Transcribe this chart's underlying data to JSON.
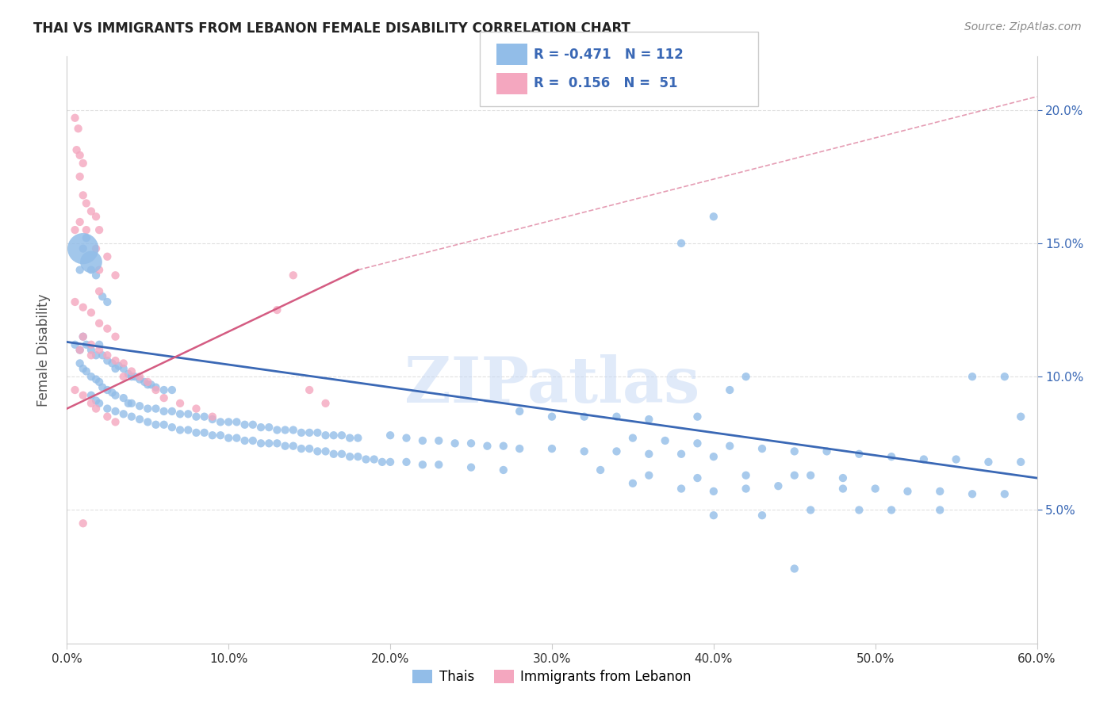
{
  "title": "THAI VS IMMIGRANTS FROM LEBANON FEMALE DISABILITY CORRELATION CHART",
  "source": "Source: ZipAtlas.com",
  "ylabel": "Female Disability",
  "watermark": "ZIPatlas",
  "xlim": [
    0.0,
    0.6
  ],
  "ylim": [
    0.0,
    0.22
  ],
  "xticks": [
    0.0,
    0.1,
    0.2,
    0.3,
    0.4,
    0.5,
    0.6
  ],
  "yticks": [
    0.05,
    0.1,
    0.15,
    0.2
  ],
  "thai_color": "#92bde8",
  "lebanon_color": "#f4a7bf",
  "thai_line_color": "#3a68b5",
  "lebanon_line_color": "#d45c82",
  "thai_line": [
    0.0,
    0.113,
    0.6,
    0.062
  ],
  "lebanon_line_solid": [
    0.0,
    0.088,
    0.18,
    0.14
  ],
  "lebanon_line_dashed": [
    0.18,
    0.14,
    0.6,
    0.205
  ],
  "background_color": "#ffffff",
  "grid_color": "#e0e0e0",
  "thai_scatter": [
    [
      0.01,
      0.148
    ],
    [
      0.012,
      0.152
    ],
    [
      0.008,
      0.14
    ],
    [
      0.015,
      0.14
    ],
    [
      0.018,
      0.138
    ],
    [
      0.022,
      0.13
    ],
    [
      0.025,
      0.128
    ],
    [
      0.005,
      0.112
    ],
    [
      0.008,
      0.11
    ],
    [
      0.01,
      0.115
    ],
    [
      0.012,
      0.112
    ],
    [
      0.015,
      0.11
    ],
    [
      0.018,
      0.108
    ],
    [
      0.02,
      0.112
    ],
    [
      0.022,
      0.108
    ],
    [
      0.025,
      0.106
    ],
    [
      0.028,
      0.105
    ],
    [
      0.03,
      0.103
    ],
    [
      0.032,
      0.104
    ],
    [
      0.035,
      0.103
    ],
    [
      0.038,
      0.101
    ],
    [
      0.04,
      0.1
    ],
    [
      0.042,
      0.1
    ],
    [
      0.045,
      0.099
    ],
    [
      0.048,
      0.098
    ],
    [
      0.05,
      0.097
    ],
    [
      0.052,
      0.097
    ],
    [
      0.055,
      0.096
    ],
    [
      0.06,
      0.095
    ],
    [
      0.065,
      0.095
    ],
    [
      0.008,
      0.105
    ],
    [
      0.01,
      0.103
    ],
    [
      0.012,
      0.102
    ],
    [
      0.015,
      0.1
    ],
    [
      0.018,
      0.099
    ],
    [
      0.02,
      0.098
    ],
    [
      0.022,
      0.096
    ],
    [
      0.025,
      0.095
    ],
    [
      0.028,
      0.094
    ],
    [
      0.03,
      0.093
    ],
    [
      0.035,
      0.092
    ],
    [
      0.038,
      0.09
    ],
    [
      0.04,
      0.09
    ],
    [
      0.045,
      0.089
    ],
    [
      0.05,
      0.088
    ],
    [
      0.055,
      0.088
    ],
    [
      0.06,
      0.087
    ],
    [
      0.065,
      0.087
    ],
    [
      0.07,
      0.086
    ],
    [
      0.075,
      0.086
    ],
    [
      0.08,
      0.085
    ],
    [
      0.085,
      0.085
    ],
    [
      0.09,
      0.084
    ],
    [
      0.095,
      0.083
    ],
    [
      0.1,
      0.083
    ],
    [
      0.105,
      0.083
    ],
    [
      0.11,
      0.082
    ],
    [
      0.115,
      0.082
    ],
    [
      0.12,
      0.081
    ],
    [
      0.125,
      0.081
    ],
    [
      0.13,
      0.08
    ],
    [
      0.135,
      0.08
    ],
    [
      0.14,
      0.08
    ],
    [
      0.145,
      0.079
    ],
    [
      0.15,
      0.079
    ],
    [
      0.155,
      0.079
    ],
    [
      0.16,
      0.078
    ],
    [
      0.165,
      0.078
    ],
    [
      0.17,
      0.078
    ],
    [
      0.175,
      0.077
    ],
    [
      0.18,
      0.077
    ],
    [
      0.015,
      0.093
    ],
    [
      0.018,
      0.091
    ],
    [
      0.02,
      0.09
    ],
    [
      0.025,
      0.088
    ],
    [
      0.03,
      0.087
    ],
    [
      0.035,
      0.086
    ],
    [
      0.04,
      0.085
    ],
    [
      0.045,
      0.084
    ],
    [
      0.05,
      0.083
    ],
    [
      0.055,
      0.082
    ],
    [
      0.06,
      0.082
    ],
    [
      0.065,
      0.081
    ],
    [
      0.07,
      0.08
    ],
    [
      0.075,
      0.08
    ],
    [
      0.08,
      0.079
    ],
    [
      0.085,
      0.079
    ],
    [
      0.09,
      0.078
    ],
    [
      0.095,
      0.078
    ],
    [
      0.1,
      0.077
    ],
    [
      0.105,
      0.077
    ],
    [
      0.11,
      0.076
    ],
    [
      0.115,
      0.076
    ],
    [
      0.12,
      0.075
    ],
    [
      0.125,
      0.075
    ],
    [
      0.13,
      0.075
    ],
    [
      0.135,
      0.074
    ],
    [
      0.14,
      0.074
    ],
    [
      0.145,
      0.073
    ],
    [
      0.15,
      0.073
    ],
    [
      0.155,
      0.072
    ],
    [
      0.16,
      0.072
    ],
    [
      0.165,
      0.071
    ],
    [
      0.17,
      0.071
    ],
    [
      0.175,
      0.07
    ],
    [
      0.18,
      0.07
    ],
    [
      0.185,
      0.069
    ],
    [
      0.19,
      0.069
    ],
    [
      0.195,
      0.068
    ],
    [
      0.2,
      0.068
    ],
    [
      0.21,
      0.068
    ],
    [
      0.22,
      0.067
    ],
    [
      0.23,
      0.067
    ],
    [
      0.25,
      0.066
    ],
    [
      0.27,
      0.065
    ],
    [
      0.2,
      0.078
    ],
    [
      0.21,
      0.077
    ],
    [
      0.22,
      0.076
    ],
    [
      0.23,
      0.076
    ],
    [
      0.24,
      0.075
    ],
    [
      0.25,
      0.075
    ],
    [
      0.26,
      0.074
    ],
    [
      0.27,
      0.074
    ],
    [
      0.28,
      0.073
    ],
    [
      0.3,
      0.073
    ],
    [
      0.32,
      0.072
    ],
    [
      0.34,
      0.072
    ],
    [
      0.36,
      0.071
    ],
    [
      0.38,
      0.071
    ],
    [
      0.4,
      0.07
    ],
    [
      0.28,
      0.087
    ],
    [
      0.3,
      0.085
    ],
    [
      0.32,
      0.085
    ],
    [
      0.34,
      0.085
    ],
    [
      0.36,
      0.084
    ],
    [
      0.35,
      0.077
    ],
    [
      0.37,
      0.076
    ],
    [
      0.39,
      0.075
    ],
    [
      0.41,
      0.074
    ],
    [
      0.43,
      0.073
    ],
    [
      0.45,
      0.072
    ],
    [
      0.47,
      0.072
    ],
    [
      0.49,
      0.071
    ],
    [
      0.51,
      0.07
    ],
    [
      0.53,
      0.069
    ],
    [
      0.55,
      0.069
    ],
    [
      0.57,
      0.068
    ],
    [
      0.59,
      0.068
    ],
    [
      0.39,
      0.085
    ],
    [
      0.41,
      0.095
    ],
    [
      0.42,
      0.1
    ],
    [
      0.38,
      0.15
    ],
    [
      0.4,
      0.16
    ],
    [
      0.35,
      0.06
    ],
    [
      0.38,
      0.058
    ],
    [
      0.4,
      0.057
    ],
    [
      0.42,
      0.058
    ],
    [
      0.44,
      0.059
    ],
    [
      0.46,
      0.063
    ],
    [
      0.48,
      0.058
    ],
    [
      0.5,
      0.058
    ],
    [
      0.52,
      0.057
    ],
    [
      0.54,
      0.057
    ],
    [
      0.56,
      0.056
    ],
    [
      0.58,
      0.056
    ],
    [
      0.33,
      0.065
    ],
    [
      0.36,
      0.063
    ],
    [
      0.39,
      0.062
    ],
    [
      0.42,
      0.063
    ],
    [
      0.45,
      0.063
    ],
    [
      0.48,
      0.062
    ],
    [
      0.4,
      0.048
    ],
    [
      0.43,
      0.048
    ],
    [
      0.46,
      0.05
    ],
    [
      0.49,
      0.05
    ],
    [
      0.51,
      0.05
    ],
    [
      0.54,
      0.05
    ],
    [
      0.45,
      0.028
    ],
    [
      0.56,
      0.1
    ],
    [
      0.58,
      0.1
    ],
    [
      0.59,
      0.085
    ]
  ],
  "thai_large_points": [
    [
      0.01,
      0.148
    ],
    [
      0.015,
      0.143
    ]
  ],
  "thai_large_sizes": [
    800,
    400
  ],
  "lebanon_scatter": [
    [
      0.005,
      0.197
    ],
    [
      0.007,
      0.193
    ],
    [
      0.006,
      0.185
    ],
    [
      0.008,
      0.183
    ],
    [
      0.01,
      0.18
    ],
    [
      0.008,
      0.175
    ],
    [
      0.01,
      0.168
    ],
    [
      0.012,
      0.165
    ],
    [
      0.015,
      0.162
    ],
    [
      0.018,
      0.16
    ],
    [
      0.005,
      0.155
    ],
    [
      0.008,
      0.158
    ],
    [
      0.012,
      0.155
    ],
    [
      0.02,
      0.155
    ],
    [
      0.018,
      0.148
    ],
    [
      0.025,
      0.145
    ],
    [
      0.02,
      0.14
    ],
    [
      0.03,
      0.138
    ],
    [
      0.02,
      0.132
    ],
    [
      0.005,
      0.128
    ],
    [
      0.01,
      0.126
    ],
    [
      0.015,
      0.124
    ],
    [
      0.02,
      0.12
    ],
    [
      0.025,
      0.118
    ],
    [
      0.03,
      0.115
    ],
    [
      0.01,
      0.115
    ],
    [
      0.015,
      0.112
    ],
    [
      0.02,
      0.11
    ],
    [
      0.025,
      0.108
    ],
    [
      0.03,
      0.106
    ],
    [
      0.035,
      0.105
    ],
    [
      0.04,
      0.102
    ],
    [
      0.045,
      0.1
    ],
    [
      0.05,
      0.098
    ],
    [
      0.055,
      0.095
    ],
    [
      0.005,
      0.095
    ],
    [
      0.01,
      0.093
    ],
    [
      0.015,
      0.09
    ],
    [
      0.018,
      0.088
    ],
    [
      0.025,
      0.085
    ],
    [
      0.03,
      0.083
    ],
    [
      0.008,
      0.11
    ],
    [
      0.015,
      0.108
    ],
    [
      0.14,
      0.138
    ],
    [
      0.06,
      0.092
    ],
    [
      0.07,
      0.09
    ],
    [
      0.08,
      0.088
    ],
    [
      0.09,
      0.085
    ],
    [
      0.13,
      0.125
    ],
    [
      0.15,
      0.095
    ],
    [
      0.16,
      0.09
    ],
    [
      0.01,
      0.045
    ],
    [
      0.035,
      0.1
    ]
  ]
}
